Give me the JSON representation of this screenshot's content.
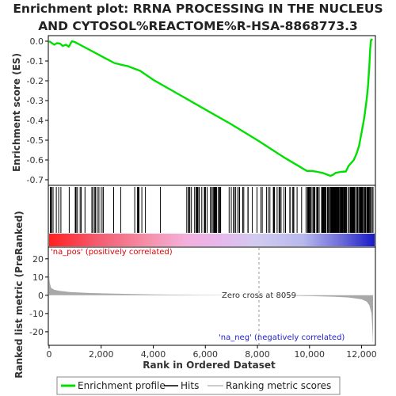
{
  "title": [
    "Enrichment plot: RRNA PROCESSING IN THE NUCLEUS",
    "AND CYTOSOL%REACTOME%R-HSA-8868773.3"
  ],
  "colors": {
    "es_line": "#00e000",
    "hits": "#000000",
    "metric_fill": "#a8a8a8",
    "pos_label": "#e00000",
    "neg_label": "#2020d0",
    "zero_cross": "#999999"
  },
  "legend": {
    "items": [
      {
        "label": "Enrichment profile",
        "color": "#00e000",
        "style": "thick-line"
      },
      {
        "label": "Hits",
        "color": "#000000",
        "style": "line"
      },
      {
        "label": "Ranking metric scores",
        "color": "#bbbbbb",
        "style": "line"
      }
    ]
  },
  "chart_data": [
    {
      "type": "line",
      "name": "enrichment-profile",
      "ylabel": "Enrichment score (ES)",
      "xlim": [
        0,
        12500
      ],
      "ylim": [
        -0.72,
        0.02
      ],
      "yticks": [
        0.0,
        -0.1,
        -0.2,
        -0.3,
        -0.4,
        -0.5,
        -0.6,
        -0.7
      ],
      "ytick_labels": [
        "0.0",
        "-0.1",
        "-0.2",
        "-0.3",
        "-0.4",
        "-0.5",
        "-0.6",
        "-0.7"
      ],
      "series": [
        {
          "name": "Enrichment profile",
          "x": [
            0,
            200,
            300,
            420,
            520,
            650,
            760,
            820,
            880,
            1000,
            1500,
            2000,
            2500,
            2800,
            3000,
            3500,
            4000,
            5000,
            6000,
            7000,
            8000,
            9000,
            9900,
            10100,
            10300,
            10500,
            10700,
            10800,
            10900,
            11000,
            11200,
            11400,
            11500,
            11700,
            11800,
            11900,
            12000,
            12100,
            12200,
            12250,
            12300,
            12330,
            12360,
            12380,
            12420
          ],
          "y": [
            0.0,
            -0.018,
            -0.01,
            -0.012,
            -0.024,
            -0.018,
            -0.028,
            -0.012,
            0.0,
            -0.005,
            -0.04,
            -0.075,
            -0.11,
            -0.12,
            -0.125,
            -0.15,
            -0.195,
            -0.27,
            -0.345,
            -0.42,
            -0.5,
            -0.585,
            -0.655,
            -0.655,
            -0.66,
            -0.665,
            -0.675,
            -0.68,
            -0.675,
            -0.665,
            -0.66,
            -0.658,
            -0.63,
            -0.6,
            -0.57,
            -0.53,
            -0.46,
            -0.39,
            -0.29,
            -0.22,
            -0.12,
            -0.04,
            0.005,
            0.008,
            0.005
          ]
        }
      ]
    },
    {
      "type": "scatter",
      "name": "gene-hits",
      "xlim": [
        0,
        12500
      ],
      "hit_clusters": [
        {
          "start": 30,
          "end": 1300,
          "count": 14
        },
        {
          "start": 1300,
          "end": 3600,
          "count": 18
        },
        {
          "start": 3600,
          "end": 5500,
          "count": 7
        },
        {
          "start": 5500,
          "end": 7000,
          "count": 28
        },
        {
          "start": 7000,
          "end": 8100,
          "count": 12
        },
        {
          "start": 8100,
          "end": 9900,
          "count": 22
        },
        {
          "start": 9900,
          "end": 10800,
          "count": 42
        },
        {
          "start": 10800,
          "end": 12450,
          "count": 110
        }
      ]
    },
    {
      "type": "area",
      "name": "ranked-list-metric",
      "xlabel": "Rank in Ordered Dataset",
      "ylabel": "Ranked list metric (PreRanked)",
      "xlim": [
        0,
        12500
      ],
      "ylim": [
        -27,
        26
      ],
      "xticks": [
        0,
        2000,
        4000,
        6000,
        8000,
        10000,
        12000
      ],
      "xtick_labels": [
        "0",
        "2,000",
        "4,000",
        "6,000",
        "8,000",
        "10,000",
        "12,000"
      ],
      "yticks": [
        20,
        10,
        0,
        -10,
        -20
      ],
      "ytick_labels": [
        "20",
        "10",
        "0",
        "-10",
        "-20"
      ],
      "zero_cross": 8059,
      "zero_cross_label": "Zero cross at 8059",
      "pos_label": "'na_pos' (positively correlated)",
      "neg_label": "'na_neg' (negatively correlated)",
      "series": [
        {
          "x": [
            0,
            10,
            30,
            80,
            200,
            400,
            800,
            1500,
            2500,
            4000,
            6000,
            8059,
            9000,
            10000,
            11000,
            11500,
            12000,
            12200,
            12300,
            12380,
            12420,
            12440
          ],
          "y": [
            14,
            9,
            6.5,
            4,
            3,
            2.4,
            1.8,
            1.3,
            0.9,
            0.5,
            0.2,
            0.0,
            -0.2,
            -0.4,
            -0.8,
            -1.2,
            -2.2,
            -3.5,
            -5.5,
            -10,
            -20,
            -27
          ]
        }
      ]
    }
  ]
}
